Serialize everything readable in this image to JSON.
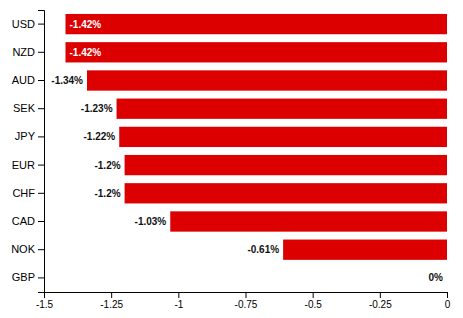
{
  "chart_data": {
    "type": "bar",
    "orientation": "horizontal",
    "categories": [
      "USD",
      "NZD",
      "AUD",
      "SEK",
      "JPY",
      "EUR",
      "CHF",
      "CAD",
      "NOK",
      "GBP"
    ],
    "values": [
      -1.42,
      -1.42,
      -1.34,
      -1.23,
      -1.22,
      -1.2,
      -1.2,
      -1.03,
      -0.61,
      0.0
    ],
    "value_labels": [
      "-1.42%",
      "-1.42%",
      "-1.34%",
      "-1.23%",
      "-1.22%",
      "-1.2%",
      "-1.2%",
      "-1.03%",
      "-0.61%",
      "0%"
    ],
    "data_labels": true,
    "color": "#dd0000",
    "xlim": [
      -1.5,
      0.0
    ],
    "xticks": [
      -1.5,
      -1.25,
      -1,
      -0.75,
      -0.5,
      -0.25,
      0
    ]
  }
}
